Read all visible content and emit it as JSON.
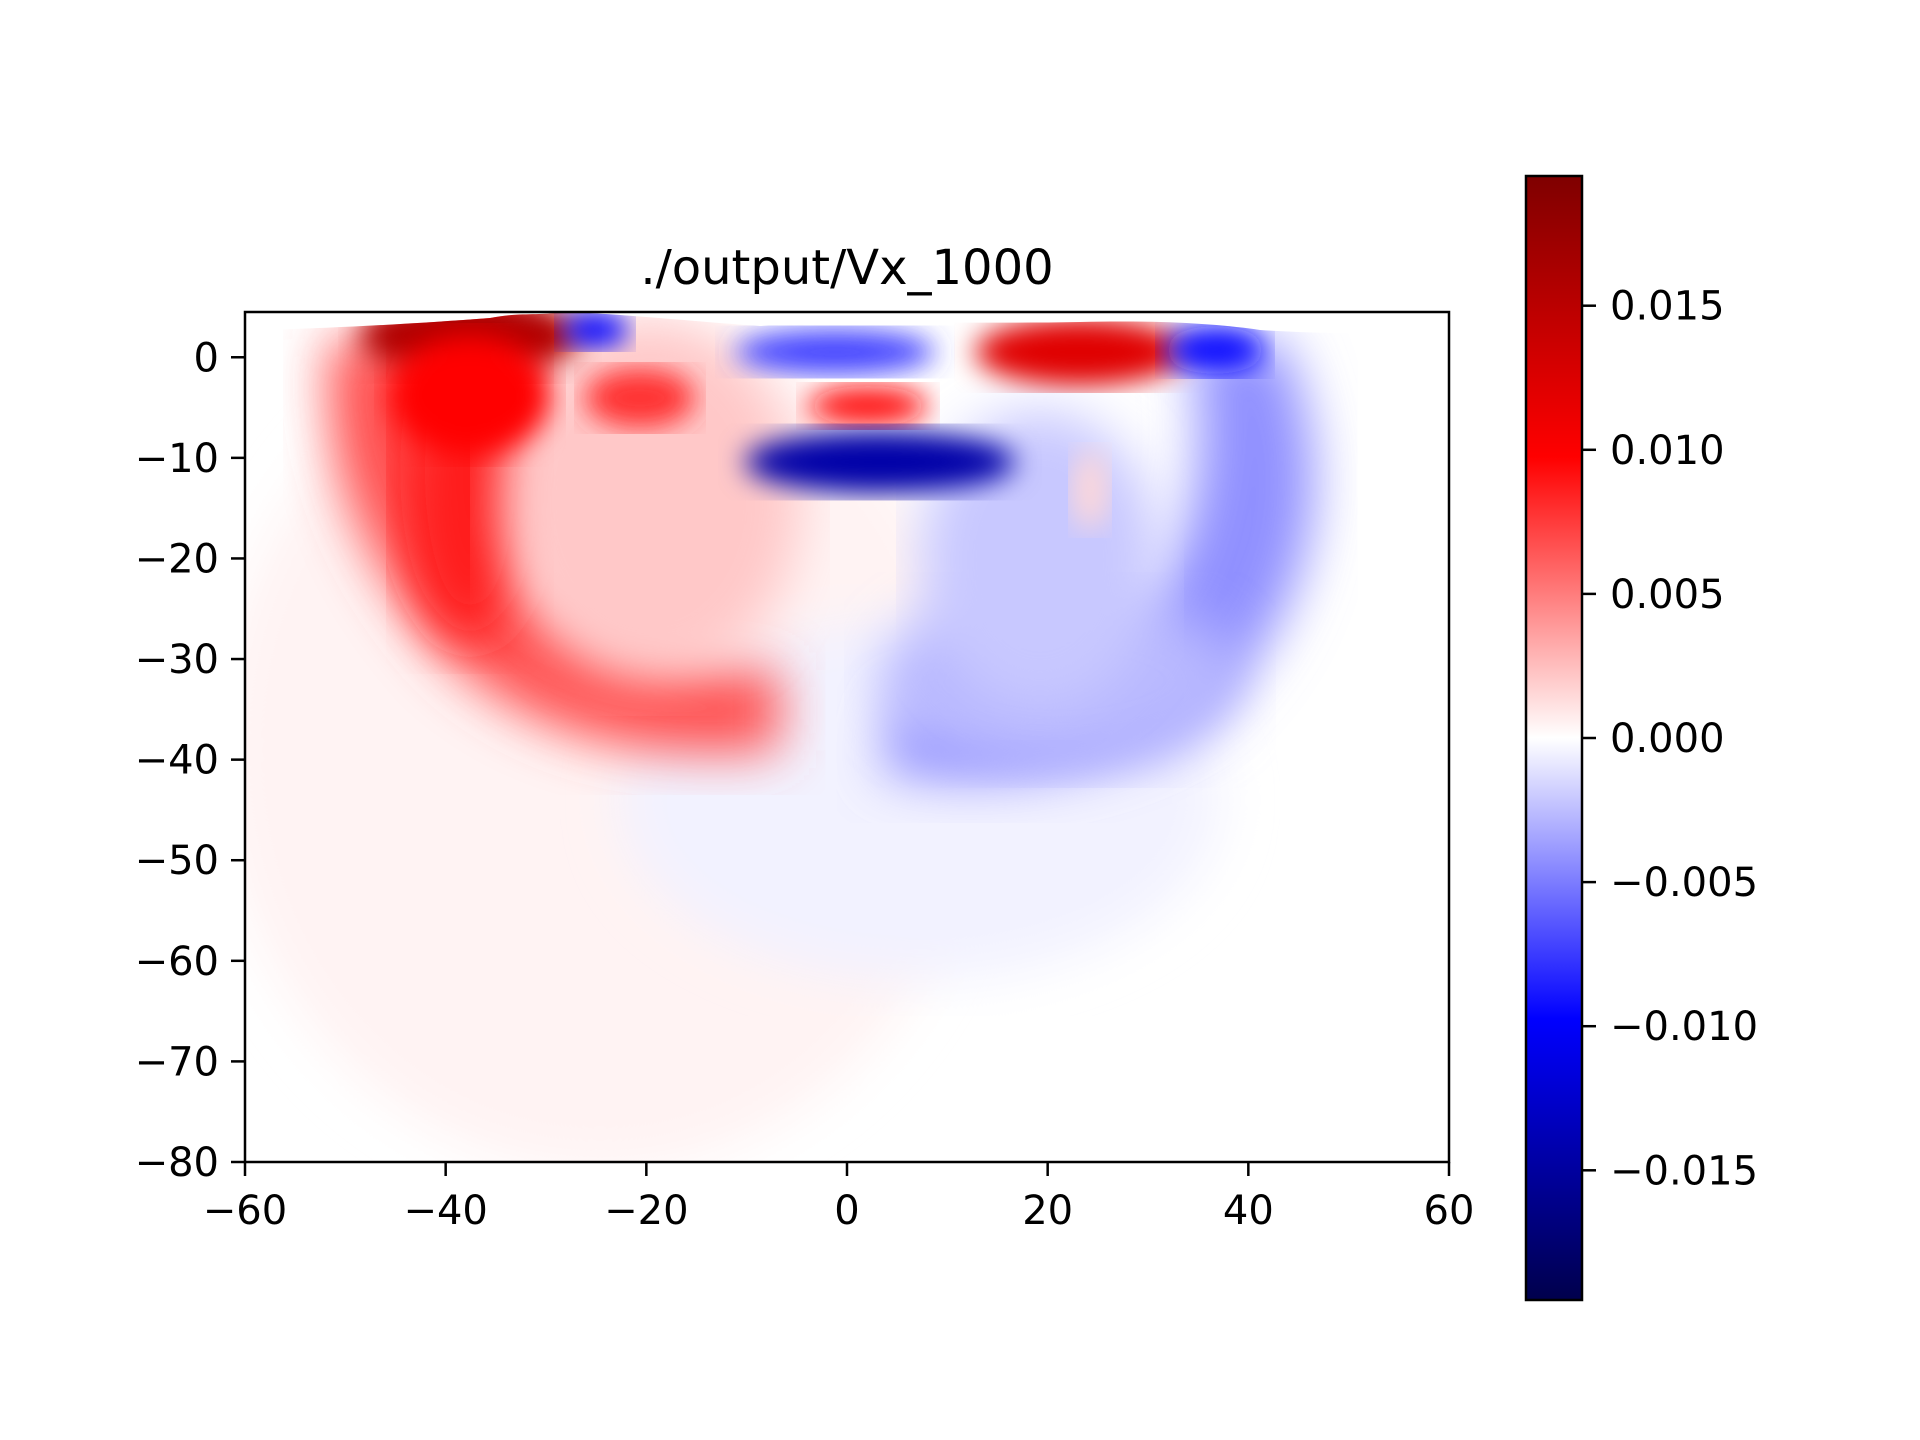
{
  "chart_data": {
    "type": "heatmap",
    "title": "./output/Vx_1000",
    "xlabel": "",
    "ylabel": "",
    "xlim": [
      -60,
      60
    ],
    "ylim": [
      -80,
      4.5
    ],
    "x_ticks": [
      -60,
      -40,
      -20,
      0,
      20,
      40,
      60
    ],
    "x_tick_labels": [
      "−60",
      "−40",
      "−20",
      "0",
      "20",
      "40",
      "60"
    ],
    "y_ticks": [
      0,
      -10,
      -20,
      -30,
      -40,
      -50,
      -60,
      -70,
      -80
    ],
    "y_tick_labels": [
      "0",
      "−10",
      "−20",
      "−30",
      "−40",
      "−50",
      "−60",
      "−70",
      "−80"
    ],
    "colormap": "seismic",
    "colormap_stops": [
      "#00004c",
      "#0000ff",
      "#ffffff",
      "#ff0000",
      "#7f0000"
    ],
    "colorbar": {
      "vmin": -0.0195,
      "vmax": 0.0195,
      "ticks": [
        0.015,
        0.01,
        0.005,
        0.0,
        -0.005,
        -0.01,
        -0.015
      ],
      "tick_labels": [
        "0.015",
        "0.010",
        "0.005",
        "0.000",
        "−0.005",
        "−0.010",
        "−0.015"
      ]
    },
    "features": [
      {
        "x": -38,
        "y": 1,
        "value": 0.0195
      },
      {
        "x": -36,
        "y": -5,
        "value": 0.01
      },
      {
        "x": -37,
        "y": -20,
        "value": 0.0095
      },
      {
        "x": -30,
        "y": -30,
        "value": 0.006
      },
      {
        "x": -15,
        "y": -4,
        "value": 0.006
      },
      {
        "x": -26,
        "y": 3,
        "value": -0.012
      },
      {
        "x": 3,
        "y": 1,
        "value": -0.008
      },
      {
        "x": 1,
        "y": -5,
        "value": 0.01
      },
      {
        "x": 7,
        "y": -10,
        "value": -0.017
      },
      {
        "x": 23,
        "y": 0,
        "value": 0.013
      },
      {
        "x": 38,
        "y": 2,
        "value": -0.012
      },
      {
        "x": 28,
        "y": -25,
        "value": -0.004
      },
      {
        "x": 22,
        "y": -12,
        "value": 0.002
      },
      {
        "x": 10,
        "y": -48,
        "value": -0.001
      }
    ]
  }
}
